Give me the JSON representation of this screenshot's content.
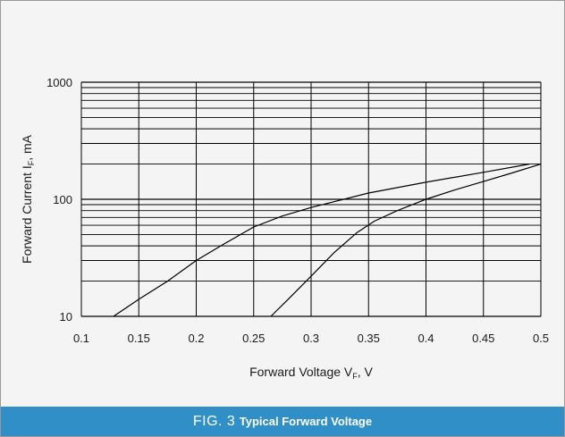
{
  "caption": {
    "figure": "FIG. 3",
    "title": "Typical Forward Voltage"
  },
  "chart_data": {
    "type": "line",
    "title": "Typical Forward Voltage",
    "xlabel": "Forward Voltage V",
    "xlabel_sub": "F",
    "xlabel_suffix": ", V",
    "ylabel": "Forward Current I",
    "ylabel_sub": "F",
    "ylabel_suffix": ", mA",
    "xlim": [
      0.1,
      0.5
    ],
    "ylim": [
      10,
      1000
    ],
    "yscale": "log",
    "grid": true,
    "x_ticks": [
      "0.1",
      "0.15",
      "0.2",
      "0.25",
      "0.3",
      "0.35",
      "0.4",
      "0.45",
      "0.5"
    ],
    "y_ticks": [
      "10",
      "100",
      "1000"
    ],
    "series": [
      {
        "points": [
          [
            0.128,
            10
          ],
          [
            0.15,
            14
          ],
          [
            0.175,
            20
          ],
          [
            0.2,
            30
          ],
          [
            0.225,
            42
          ],
          [
            0.25,
            58
          ],
          [
            0.275,
            72
          ],
          [
            0.3,
            85
          ],
          [
            0.325,
            98
          ],
          [
            0.35,
            113
          ],
          [
            0.4,
            140
          ],
          [
            0.45,
            170
          ],
          [
            0.49,
            200
          ]
        ]
      },
      {
        "points": [
          [
            0.265,
            10
          ],
          [
            0.28,
            14
          ],
          [
            0.3,
            22
          ],
          [
            0.32,
            35
          ],
          [
            0.34,
            52
          ],
          [
            0.355,
            65
          ],
          [
            0.375,
            80
          ],
          [
            0.4,
            100
          ],
          [
            0.425,
            120
          ],
          [
            0.45,
            142
          ],
          [
            0.475,
            168
          ],
          [
            0.5,
            200
          ]
        ]
      }
    ]
  }
}
